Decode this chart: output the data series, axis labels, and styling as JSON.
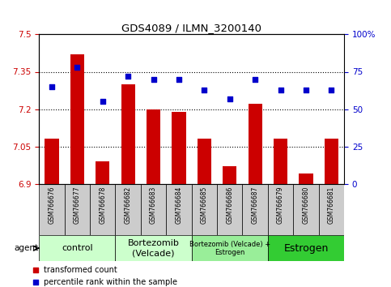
{
  "title": "GDS4089 / ILMN_3200140",
  "samples": [
    "GSM766676",
    "GSM766677",
    "GSM766678",
    "GSM766682",
    "GSM766683",
    "GSM766684",
    "GSM766685",
    "GSM766686",
    "GSM766687",
    "GSM766679",
    "GSM766680",
    "GSM766681"
  ],
  "red_values": [
    7.08,
    7.42,
    6.99,
    7.3,
    7.2,
    7.19,
    7.08,
    6.97,
    7.22,
    7.08,
    6.94,
    7.08
  ],
  "blue_values": [
    65,
    78,
    55,
    72,
    70,
    70,
    63,
    57,
    70,
    63,
    63,
    63
  ],
  "ylim_left": [
    6.9,
    7.5
  ],
  "ylim_right": [
    0,
    100
  ],
  "yticks_left": [
    6.9,
    7.05,
    7.2,
    7.35,
    7.5
  ],
  "yticks_right": [
    0,
    25,
    50,
    75,
    100
  ],
  "ytick_labels_left": [
    "6.9",
    "7.05",
    "7.2",
    "7.35",
    "7.5"
  ],
  "ytick_labels_right": [
    "0",
    "25",
    "50",
    "75",
    "100%"
  ],
  "groups": [
    {
      "label": "control",
      "start": 0,
      "end": 3,
      "color": "#ccffcc",
      "fontsize": 8
    },
    {
      "label": "Bortezomib\n(Velcade)",
      "start": 3,
      "end": 6,
      "color": "#ccffcc",
      "fontsize": 8
    },
    {
      "label": "Bortezomib (Velcade) +\nEstrogen",
      "start": 6,
      "end": 9,
      "color": "#99ee99",
      "fontsize": 6
    },
    {
      "label": "Estrogen",
      "start": 9,
      "end": 12,
      "color": "#33cc33",
      "fontsize": 9
    }
  ],
  "bar_color": "#cc0000",
  "dot_color": "#0000cc",
  "bar_width": 0.55,
  "legend_red": "transformed count",
  "legend_blue": "percentile rank within the sample",
  "bg_color": "#ffffff",
  "sample_box_color": "#cccccc",
  "left_tick_color": "#cc0000",
  "right_tick_color": "#0000cc"
}
